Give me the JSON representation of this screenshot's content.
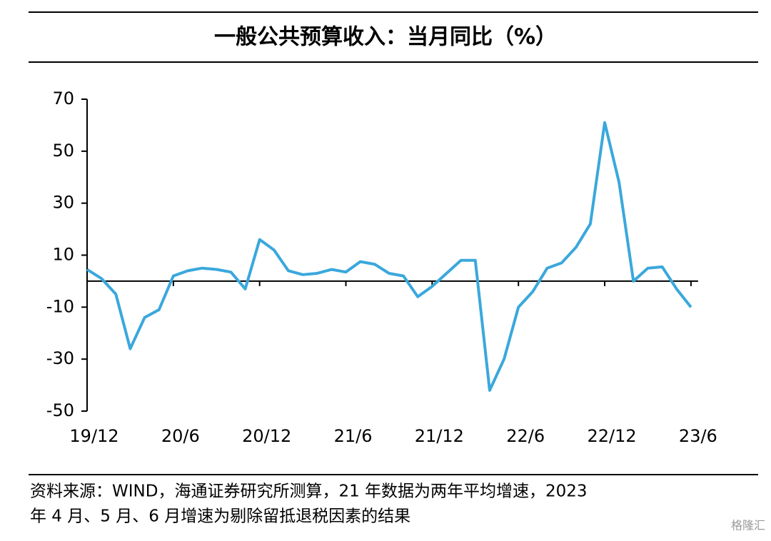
{
  "chart_data": {
    "type": "line",
    "title": "一般公共预算收入：当月同比（%）",
    "categories": [
      "19/12",
      null,
      null,
      null,
      null,
      null,
      "20/6",
      null,
      null,
      null,
      null,
      null,
      "20/12",
      null,
      null,
      null,
      null,
      null,
      "21/6",
      null,
      null,
      null,
      null,
      null,
      "21/12",
      null,
      null,
      null,
      null,
      null,
      "22/6",
      null,
      null,
      null,
      null,
      null,
      "22/12",
      null,
      null,
      null,
      null,
      null,
      "23/6"
    ],
    "series": [
      {
        "color": "#3aa8dc",
        "values": [
          4.5,
          1,
          -5,
          -26,
          -14,
          -11,
          2,
          4,
          5,
          4.5,
          3.5,
          -3,
          16,
          12,
          4,
          2.5,
          3,
          4.5,
          3.5,
          7.5,
          6.5,
          3,
          2,
          -6,
          -2,
          3,
          8,
          8,
          -42,
          -30,
          -10,
          -4,
          5,
          7,
          13,
          22,
          61,
          38,
          0,
          5,
          5.5,
          -3,
          -10
        ]
      }
    ],
    "ylim": [
      -50,
      70
    ],
    "yticks": [
      -50,
      -30,
      -10,
      10,
      30,
      50,
      70
    ],
    "source": "资料来源：WIND，海通证券研究所测算，21 年数据为两年平均增速，2023",
    "source_line2": "年 4 月、5 月、6 月增速为剔除留抵退税因素的结果",
    "watermark": "格隆汇"
  }
}
